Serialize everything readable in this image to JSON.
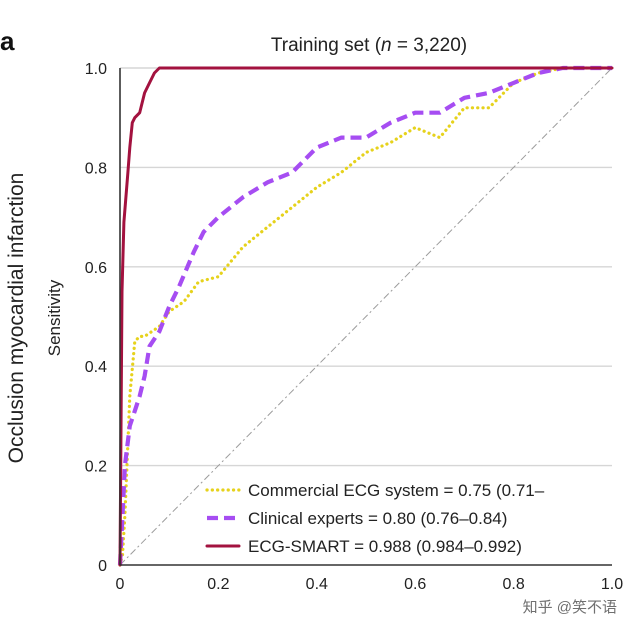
{
  "panel_label": "a",
  "watermark": "知乎 @笑不语",
  "colors": {
    "commercial": "#e6d21c",
    "clinical": "#a64df2",
    "smart": "#a3123f",
    "grid": "#d6d6d6",
    "diagonal": "#9c9c9c",
    "axis": "#333333"
  },
  "chart_data": {
    "type": "line",
    "title_prefix": "Training set (",
    "title_italic": "n",
    "title_suffix": " = 3,220)",
    "ylabel_outer": "Occlusion myocardial infarction",
    "ylabel": "Sensitivity",
    "xlabel": "",
    "xlim": [
      0,
      1
    ],
    "ylim": [
      0,
      1
    ],
    "xticks": [
      "0",
      "0.2",
      "0.4",
      "0.6",
      "0.8",
      "1.0"
    ],
    "yticks": [
      "0",
      "0.2",
      "0.4",
      "0.6",
      "0.8",
      "1.0"
    ],
    "grid": "horizontal",
    "legend_position": "bottom-right",
    "series": [
      {
        "name": "Commercial ECG system",
        "legend": "Commercial ECG system = 0.75 (0.71–",
        "style": "dotted",
        "color_key": "commercial",
        "x": [
          0,
          0.005,
          0.01,
          0.015,
          0.02,
          0.03,
          0.04,
          0.05,
          0.08,
          0.1,
          0.13,
          0.16,
          0.2,
          0.25,
          0.3,
          0.35,
          0.4,
          0.45,
          0.5,
          0.55,
          0.6,
          0.65,
          0.7,
          0.75,
          0.8,
          0.85,
          0.9,
          1.0
        ],
        "y": [
          0,
          0.02,
          0.1,
          0.22,
          0.34,
          0.45,
          0.46,
          0.46,
          0.48,
          0.51,
          0.53,
          0.57,
          0.58,
          0.64,
          0.68,
          0.72,
          0.76,
          0.79,
          0.83,
          0.85,
          0.88,
          0.86,
          0.92,
          0.92,
          0.97,
          0.99,
          1.0,
          1.0
        ]
      },
      {
        "name": "Clinical experts",
        "legend": "Clinical experts = 0.80 (0.76–0.84)",
        "style": "dashed",
        "color_key": "clinical",
        "x": [
          0,
          0.005,
          0.01,
          0.02,
          0.03,
          0.04,
          0.05,
          0.06,
          0.08,
          0.1,
          0.12,
          0.15,
          0.17,
          0.2,
          0.25,
          0.3,
          0.35,
          0.4,
          0.45,
          0.5,
          0.55,
          0.6,
          0.65,
          0.7,
          0.75,
          0.8,
          0.85,
          0.9,
          1.0
        ],
        "y": [
          0,
          0.1,
          0.2,
          0.28,
          0.31,
          0.34,
          0.38,
          0.44,
          0.47,
          0.52,
          0.56,
          0.63,
          0.67,
          0.7,
          0.74,
          0.77,
          0.79,
          0.84,
          0.86,
          0.86,
          0.89,
          0.91,
          0.91,
          0.94,
          0.95,
          0.97,
          0.99,
          1.0,
          1.0
        ]
      },
      {
        "name": "ECG-SMART",
        "legend": "ECG-SMART = 0.988 (0.984–0.992)",
        "style": "solid",
        "color_key": "smart",
        "x": [
          0,
          0.004,
          0.008,
          0.012,
          0.016,
          0.02,
          0.025,
          0.03,
          0.04,
          0.05,
          0.06,
          0.07,
          0.08,
          0.1,
          0.15,
          0.2,
          0.3,
          0.5,
          1.0
        ],
        "y": [
          0,
          0.55,
          0.69,
          0.74,
          0.79,
          0.84,
          0.89,
          0.9,
          0.91,
          0.95,
          0.97,
          0.99,
          1.0,
          1.0,
          1.0,
          1.0,
          1.0,
          1.0,
          1.0
        ]
      }
    ]
  }
}
